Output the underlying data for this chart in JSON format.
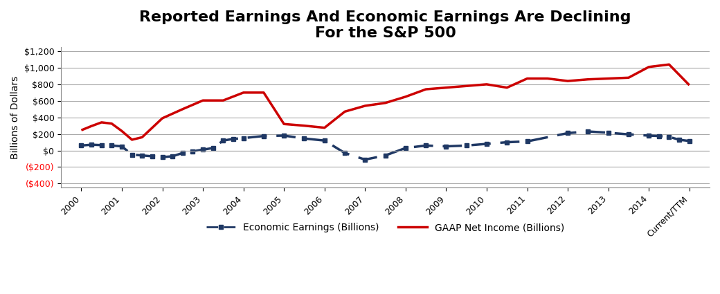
{
  "title_line1": "Reported Earnings And Economic Earnings Are Declining",
  "title_line2": "For the S&P 500",
  "ylabel": "Billions of Dollars",
  "xlabels": [
    "2000",
    "2001",
    "2002",
    "2003",
    "2004",
    "2005",
    "2006",
    "2007",
    "2008",
    "2009",
    "2010",
    "2011",
    "2012",
    "2013",
    "2014",
    "Current/TTM"
  ],
  "ylim": [
    -400,
    1200
  ],
  "yticks": [
    -400,
    -200,
    0,
    200,
    400,
    600,
    800,
    1000,
    1200
  ],
  "ytick_labels_black": [
    "$1,200",
    "$1,000",
    "$800",
    "$600",
    "$400",
    "$200",
    "$0"
  ],
  "ytick_labels_red": [
    "($200)",
    "($400)"
  ],
  "gaap_values": [
    245,
    295,
    340,
    325,
    235,
    130,
    160,
    390,
    500,
    605,
    605,
    700,
    700,
    320,
    300,
    275,
    470,
    540,
    575,
    650,
    740,
    780,
    800,
    760,
    870,
    870,
    840,
    860,
    870,
    880,
    1010,
    1040,
    790
  ],
  "gaap_x": [
    0,
    0.25,
    0.5,
    0.75,
    1.0,
    1.25,
    1.5,
    2.0,
    2.5,
    3.0,
    3.5,
    4.0,
    4.5,
    5.0,
    5.5,
    6.0,
    6.5,
    7.0,
    7.5,
    8.0,
    8.5,
    9.5,
    10.0,
    10.5,
    11.0,
    11.5,
    12.0,
    12.5,
    13.0,
    13.5,
    14.0,
    14.5,
    15.0
  ],
  "econ_values": [
    60,
    70,
    65,
    60,
    50,
    -50,
    -60,
    -70,
    -80,
    -70,
    -30,
    -10,
    10,
    30,
    120,
    140,
    150,
    175,
    180,
    145,
    120,
    -30,
    -110,
    -60,
    30,
    60,
    50,
    60,
    80,
    100,
    110,
    210,
    230,
    215,
    195,
    180,
    175,
    165,
    130,
    115
  ],
  "econ_x": [
    0,
    0.25,
    0.5,
    0.75,
    1.0,
    1.25,
    1.5,
    1.75,
    2.0,
    2.25,
    2.5,
    2.75,
    3.0,
    3.25,
    3.5,
    3.75,
    4.0,
    4.5,
    5.0,
    5.5,
    6.0,
    6.5,
    7.0,
    7.5,
    8.0,
    8.5,
    9.0,
    9.5,
    10.0,
    10.5,
    11.0,
    12.0,
    12.5,
    13.0,
    13.5,
    14.0,
    14.25,
    14.5,
    14.75,
    15.0
  ],
  "gaap_color": "#cc0000",
  "econ_color": "#1f3864",
  "background_color": "#ffffff",
  "grid_color": "#aaaaaa",
  "title_fontsize": 16,
  "axis_label_fontsize": 10,
  "legend_fontsize": 10
}
